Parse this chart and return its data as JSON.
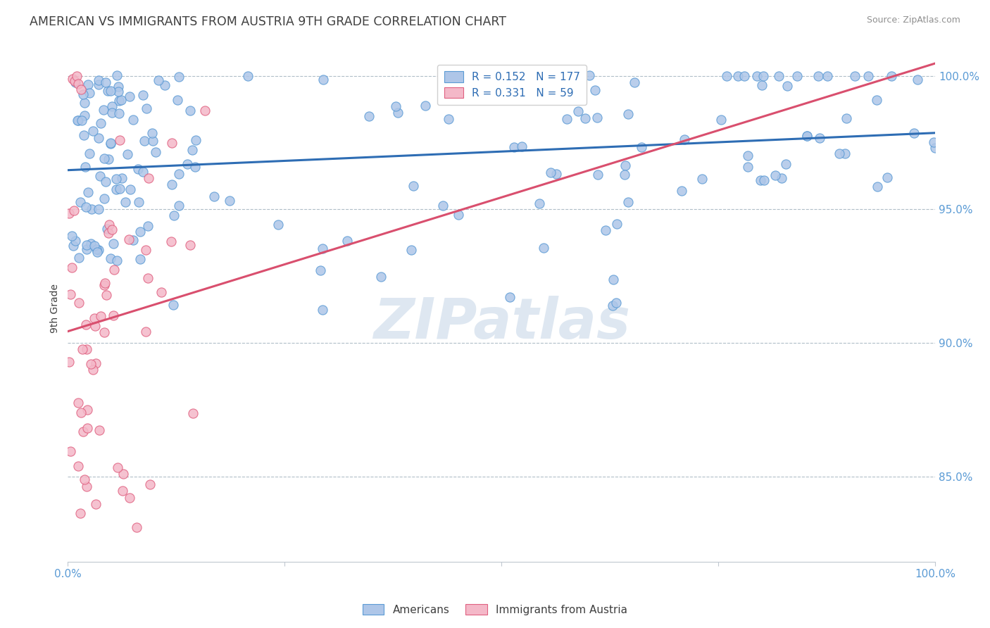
{
  "title": "AMERICAN VS IMMIGRANTS FROM AUSTRIA 9TH GRADE CORRELATION CHART",
  "source_text": "Source: ZipAtlas.com",
  "ylabel": "9th Grade",
  "xlim": [
    0.0,
    1.0
  ],
  "ylim": [
    0.818,
    1.008
  ],
  "yticks": [
    0.85,
    0.9,
    0.95,
    1.0
  ],
  "ytick_labels": [
    "85.0%",
    "90.0%",
    "95.0%",
    "100.0%"
  ],
  "american_R": 0.152,
  "american_N": 177,
  "austria_R": 0.331,
  "austria_N": 59,
  "american_color": "#aec6e8",
  "american_edge_color": "#5b9bd5",
  "austria_color": "#f4b8c8",
  "austria_edge_color": "#e06080",
  "trend_american_color": "#2e6db4",
  "trend_austria_color": "#d94f6e",
  "background_color": "#ffffff",
  "watermark_text": "ZIPatlas",
  "watermark_color": "#c8d8e8",
  "title_color": "#404040",
  "legend_r_color": "#2e6db4",
  "axis_label_color": "#5b9bd5",
  "grid_color": "#b0bec8",
  "source_color": "#909090"
}
